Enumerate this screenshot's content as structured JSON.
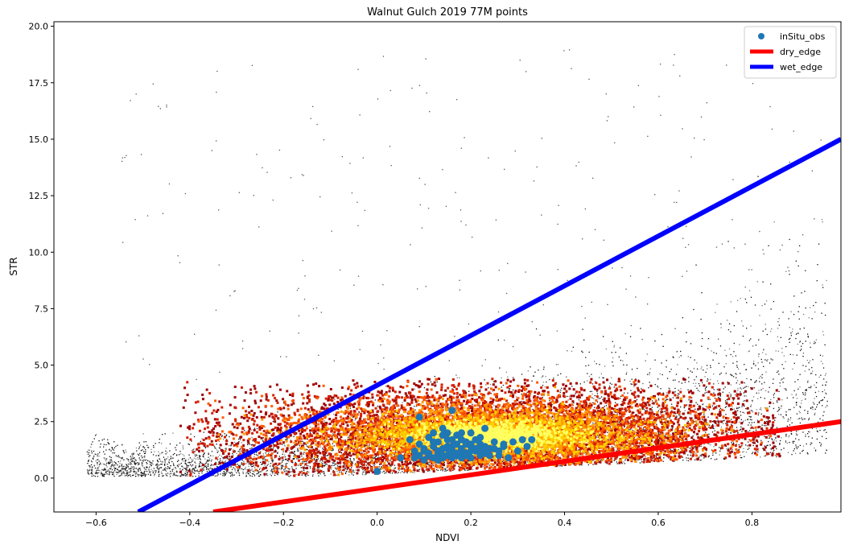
{
  "chart_data": {
    "type": "scatter",
    "title": "Walnut Gulch 2019 77M points",
    "xlabel": "NDVI",
    "ylabel": "STR",
    "xlim": [
      -0.69,
      0.99
    ],
    "ylim": [
      -1.5,
      20.2
    ],
    "x_ticks": [
      "−0.6",
      "−0.4",
      "−0.2",
      "0.0",
      "0.2",
      "0.4",
      "0.6",
      "0.8"
    ],
    "x_tick_values": [
      -0.6,
      -0.4,
      -0.2,
      0.0,
      0.2,
      0.4,
      0.6,
      0.8
    ],
    "y_ticks": [
      "0.0",
      "2.5",
      "5.0",
      "7.5",
      "10.0",
      "12.5",
      "15.0",
      "17.5",
      "20.0"
    ],
    "y_tick_values": [
      0.0,
      2.5,
      5.0,
      7.5,
      10.0,
      12.5,
      15.0,
      17.5,
      20.0
    ],
    "grid": false,
    "legend_position": "top-right",
    "legend": [
      {
        "label": "inSitu_obs",
        "kind": "marker",
        "color": "#1f77b4"
      },
      {
        "label": "dry_edge",
        "kind": "line",
        "color": "#ff0000"
      },
      {
        "label": "wet_edge",
        "kind": "line",
        "color": "#0000ff"
      }
    ],
    "lines": [
      {
        "name": "dry_edge",
        "color": "#ff0000",
        "x": [
          -0.35,
          0.99
        ],
        "y": [
          -1.5,
          2.5
        ]
      },
      {
        "name": "wet_edge",
        "color": "#0000ff",
        "x": [
          -0.51,
          0.99
        ],
        "y": [
          -1.5,
          15.0
        ]
      }
    ],
    "density_colormap": [
      "#000000",
      "#5a0000",
      "#a00000",
      "#d42000",
      "#ff5a00",
      "#ff9a00",
      "#ffd000",
      "#ffff60"
    ],
    "insitu_obs": {
      "name": "inSitu_obs",
      "color": "#1f77b4",
      "x": [
        0.0,
        0.05,
        0.07,
        0.08,
        0.09,
        0.09,
        0.1,
        0.1,
        0.11,
        0.11,
        0.12,
        0.12,
        0.12,
        0.13,
        0.13,
        0.13,
        0.14,
        0.14,
        0.14,
        0.15,
        0.15,
        0.15,
        0.16,
        0.16,
        0.16,
        0.17,
        0.17,
        0.17,
        0.18,
        0.18,
        0.18,
        0.19,
        0.19,
        0.2,
        0.2,
        0.2,
        0.21,
        0.21,
        0.22,
        0.22,
        0.23,
        0.23,
        0.24,
        0.25,
        0.26,
        0.27,
        0.28,
        0.29,
        0.3,
        0.31,
        0.32,
        0.33,
        0.16,
        0.14,
        0.12,
        0.1,
        0.18,
        0.2,
        0.22,
        0.24,
        0.13,
        0.15,
        0.17,
        0.19,
        0.21,
        0.08,
        0.09,
        0.25,
        0.27,
        0.11,
        0.14,
        0.16,
        0.18,
        0.2,
        0.23,
        0.26,
        0.12,
        0.15,
        0.19,
        0.22
      ],
      "y": [
        0.3,
        0.9,
        1.7,
        0.9,
        2.7,
        1.5,
        1.2,
        0.8,
        1.8,
        1.0,
        1.4,
        0.9,
        2.0,
        1.1,
        1.6,
        0.8,
        1.3,
        2.2,
        0.9,
        1.0,
        1.7,
        2.0,
        3.0,
        1.2,
        0.9,
        1.5,
        1.9,
        1.0,
        1.3,
        2.0,
        0.9,
        1.1,
        1.6,
        1.4,
        2.0,
        0.9,
        1.2,
        1.7,
        1.0,
        1.5,
        2.2,
        1.1,
        1.3,
        1.6,
        1.0,
        1.4,
        0.9,
        1.6,
        1.2,
        1.7,
        1.4,
        1.7,
        1.4,
        1.9,
        1.6,
        1.3,
        1.7,
        1.2,
        1.8,
        1.0,
        1.2,
        1.4,
        1.1,
        1.5,
        1.3,
        1.2,
        1.0,
        1.3,
        1.5,
        1.1,
        1.0,
        1.7,
        1.2,
        1.5,
        1.4,
        1.2,
        1.6,
        1.3,
        1.0,
        1.3
      ]
    }
  }
}
